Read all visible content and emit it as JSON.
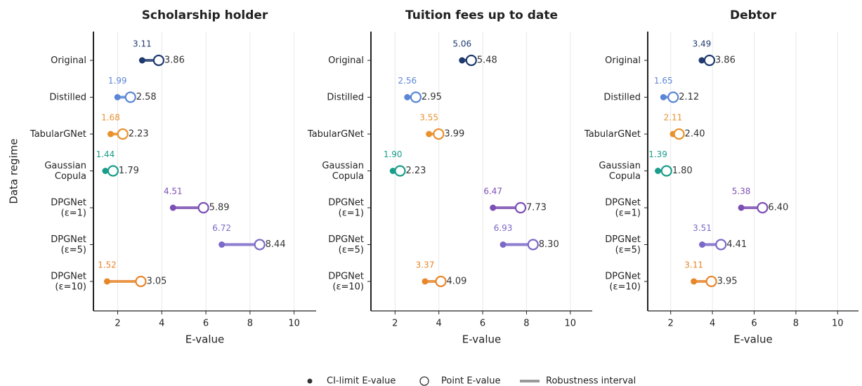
{
  "ylabel": "Data regime",
  "legend": [
    "CI-limit E-value",
    "Point E-value",
    "Robustness interval"
  ],
  "chart_data": [
    {
      "type": "dumbbell",
      "title": "Scholarship holder",
      "xlabel": "E-value",
      "categories": [
        "Original",
        "Distilled",
        "TabularGNet",
        "Gaussian\nCopula",
        "DPGNet\n(ε=1)",
        "DPGNet\n(ε=5)",
        "DPGNet\n(ε=10)"
      ],
      "colors": [
        "#1f3a6e",
        "#5b86d6",
        "#e8922e",
        "#1a9e8a",
        "#7b4fb5",
        "#7b68c8",
        "#e8862a"
      ],
      "ci_values": [
        3.11,
        1.99,
        1.68,
        1.44,
        4.51,
        6.72,
        1.52
      ],
      "ci_value_labels": [
        "3.11",
        "1.99",
        "1.68",
        "1.44",
        "4.51",
        "6.72",
        "1.52"
      ],
      "point_values": [
        3.86,
        2.58,
        2.23,
        1.79,
        5.89,
        8.44,
        3.05
      ],
      "point_value_labels": [
        "3.86",
        "2.58",
        "2.23",
        "1.79",
        "5.89",
        "8.44",
        "3.05"
      ],
      "xlim": [
        0.9,
        11
      ],
      "xticks": [
        2,
        4,
        6,
        8,
        10
      ],
      "grid": true
    },
    {
      "type": "dumbbell",
      "title": "Tuition fees up to date",
      "xlabel": "E-value",
      "categories": [
        "Original",
        "Distilled",
        "TabularGNet",
        "Gaussian\nCopula",
        "DPGNet\n(ε=1)",
        "DPGNet\n(ε=5)",
        "DPGNet\n(ε=10)"
      ],
      "colors": [
        "#1f3a6e",
        "#5b86d6",
        "#e8922e",
        "#1a9e8a",
        "#7b4fb5",
        "#7b68c8",
        "#e8862a"
      ],
      "ci_values": [
        5.06,
        2.56,
        3.55,
        1.9,
        6.47,
        6.93,
        3.37
      ],
      "ci_value_labels": [
        "5.06",
        "2.56",
        "3.55",
        "1.90",
        "6.47",
        "6.93",
        "3.37"
      ],
      "point_values": [
        5.48,
        2.95,
        3.99,
        2.23,
        7.73,
        8.3,
        4.09
      ],
      "point_value_labels": [
        "5.48",
        "2.95",
        "3.99",
        "2.23",
        "7.73",
        "8.30",
        "4.09"
      ],
      "xlim": [
        0.9,
        11
      ],
      "xticks": [
        2,
        4,
        6,
        8,
        10
      ],
      "grid": true
    },
    {
      "type": "dumbbell",
      "title": "Debtor",
      "xlabel": "E-value",
      "categories": [
        "Original",
        "Distilled",
        "TabularGNet",
        "Gaussian\nCopula",
        "DPGNet\n(ε=1)",
        "DPGNet\n(ε=5)",
        "DPGNet\n(ε=10)"
      ],
      "colors": [
        "#1f3a6e",
        "#5b86d6",
        "#e8922e",
        "#1a9e8a",
        "#7b4fb5",
        "#7b68c8",
        "#e8862a"
      ],
      "ci_values": [
        3.49,
        1.65,
        2.11,
        1.39,
        5.38,
        3.51,
        3.11
      ],
      "ci_value_labels": [
        "3.49",
        "1.65",
        "2.11",
        "1.39",
        "5.38",
        "3.51",
        "3.11"
      ],
      "point_values": [
        3.86,
        2.12,
        2.4,
        1.8,
        6.4,
        4.41,
        3.95
      ],
      "point_value_labels": [
        "3.86",
        "2.12",
        "2.40",
        "1.80",
        "6.40",
        "4.41",
        "3.95"
      ],
      "xlim": [
        0.9,
        11
      ],
      "xticks": [
        2,
        4,
        6,
        8,
        10
      ],
      "grid": true
    }
  ]
}
